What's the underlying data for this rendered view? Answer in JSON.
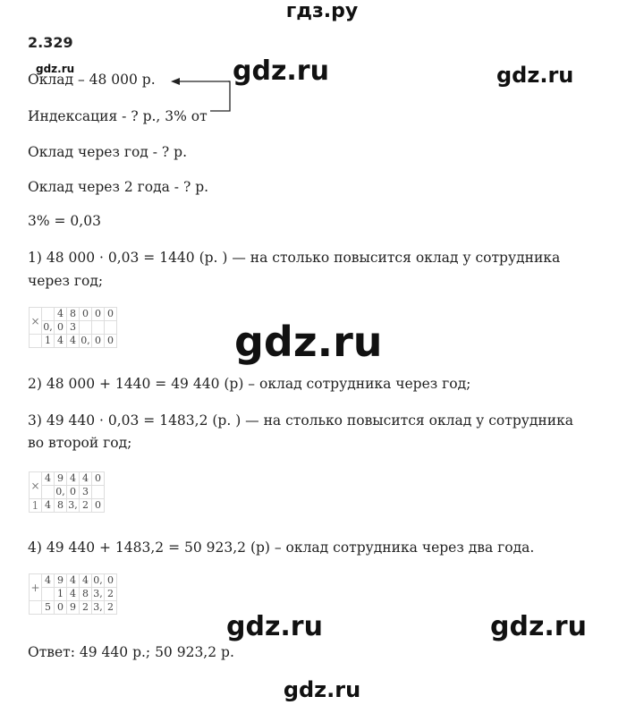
{
  "header": {
    "site_title": "гдз.ру"
  },
  "task_number": "2.329",
  "watermark": "gdz.ru",
  "lines": {
    "salary": "Оклад – 48 000 р.",
    "indexation": "Индексация - ? р., 3% от",
    "after_one_year": "Оклад через год - ? р.",
    "after_two_years": "Оклад через 2 года - ? р.",
    "percent": "3% = 0,03",
    "step1a": "1) 48 000 · 0,03 = 1440 (р. ) — на столько повысится оклад у сотрудника",
    "step1b": "через год;",
    "step2": "2) 48 000 + 1440 = 49 440 (р) – оклад сотрудника через год;",
    "step3a": "3) 49 440 · 0,03 = 1483,2 (р. ) — на столько повысится оклад у сотрудника",
    "step3b": "во второй год;",
    "step4": "4) 49 440 + 1483,2 = 50 923,2 (р) – оклад сотрудника через два года.",
    "answer": "Ответ: 49 440 р.; 50 923,2 р."
  },
  "grids": [
    {
      "sign": "×",
      "rows": [
        [
          "",
          "4",
          "8",
          "0",
          "0",
          "0"
        ],
        [
          "0,",
          "0",
          "3",
          "",
          "",
          ""
        ],
        [
          "1",
          "4",
          "4",
          "0,",
          "0",
          "0"
        ]
      ],
      "row3_first": ""
    },
    {
      "sign": "×",
      "rows": [
        [
          "4",
          "9",
          "4",
          "4",
          "0"
        ],
        [
          "",
          "0,",
          "0",
          "3",
          ""
        ],
        [
          "4",
          "8",
          "3,",
          "2",
          "0"
        ]
      ],
      "row3_first": "1"
    },
    {
      "sign": "+",
      "rows": [
        [
          "4",
          "9",
          "4",
          "4",
          "0,",
          "0"
        ],
        [
          "",
          "1",
          "4",
          "8",
          "3,",
          "2"
        ],
        [
          "5",
          "0",
          "9",
          "2",
          "3,",
          "2"
        ]
      ],
      "row3_first": ""
    }
  ]
}
